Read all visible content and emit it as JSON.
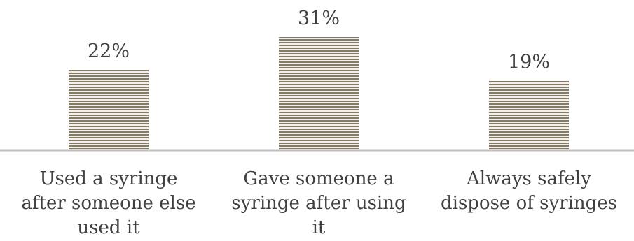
{
  "chart_data": {
    "type": "bar",
    "categories": [
      [
        "Used a syringe",
        "after someone else",
        "used it"
      ],
      [
        "Gave someone a",
        "syringe after using",
        "it"
      ],
      [
        "Always safely",
        "dispose of syringes"
      ]
    ],
    "values": [
      22,
      31,
      19
    ],
    "data_labels": [
      "22%",
      "31%",
      "19%"
    ],
    "ylim": [
      0,
      31
    ],
    "grid": false,
    "legend": "none",
    "colors": {
      "bar_stripe_dark": "#847a66",
      "bar_stripe_light": "#f2f0ea",
      "axis": "#bfbfbf",
      "text": "#404040"
    }
  }
}
